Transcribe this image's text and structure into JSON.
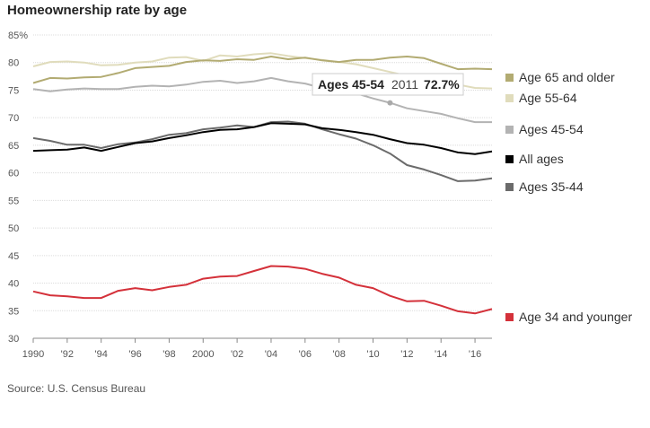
{
  "title": "Homeownership rate by age",
  "source": "Source: U.S. Census Bureau",
  "chart_data": {
    "type": "line",
    "x_ticks": [
      "1990",
      "'92",
      "'94",
      "'96",
      "'98",
      "2000",
      "'02",
      "'04",
      "'06",
      "'08",
      "'10",
      "'12",
      "'14",
      "'16"
    ],
    "x": [
      1990,
      1991,
      1992,
      1993,
      1994,
      1995,
      1996,
      1997,
      1998,
      1999,
      2000,
      2001,
      2002,
      2003,
      2004,
      2005,
      2006,
      2007,
      2008,
      2009,
      2010,
      2011,
      2012,
      2013,
      2014,
      2015,
      2016,
      2017
    ],
    "y_ticks": [
      30,
      35,
      40,
      45,
      50,
      55,
      60,
      65,
      70,
      75,
      80,
      "85%"
    ],
    "ylim": [
      30,
      85
    ],
    "xlim": [
      1990,
      2017
    ],
    "grid": true,
    "legend": "right",
    "series": [
      {
        "name": "Age 65 and older",
        "color": "#b2ab72",
        "values": [
          76.3,
          77.2,
          77.1,
          77.3,
          77.4,
          78.1,
          79.0,
          79.2,
          79.4,
          80.1,
          80.4,
          80.3,
          80.6,
          80.5,
          81.1,
          80.6,
          80.9,
          80.4,
          80.1,
          80.5,
          80.5,
          80.9,
          81.1,
          80.8,
          79.8,
          78.8,
          78.9,
          78.8
        ]
      },
      {
        "name": "Age 55-64",
        "color": "#e0dcbc",
        "values": [
          79.3,
          80.1,
          80.2,
          80.0,
          79.5,
          79.6,
          80.0,
          80.2,
          80.9,
          81.0,
          80.3,
          81.3,
          81.1,
          81.5,
          81.7,
          81.2,
          80.8,
          80.5,
          80.1,
          79.7,
          79.0,
          78.3,
          77.6,
          77.4,
          76.9,
          76.0,
          75.4,
          75.3
        ]
      },
      {
        "name": "Ages 45-54",
        "color": "#b3b3b3",
        "values": [
          75.2,
          74.8,
          75.1,
          75.3,
          75.2,
          75.2,
          75.6,
          75.8,
          75.7,
          76.0,
          76.5,
          76.7,
          76.3,
          76.6,
          77.2,
          76.6,
          76.2,
          75.4,
          75.0,
          74.4,
          73.5,
          72.7,
          71.7,
          71.2,
          70.7,
          69.9,
          69.2,
          69.2
        ]
      },
      {
        "name": "All ages",
        "color": "#000000",
        "values": [
          64.0,
          64.1,
          64.2,
          64.6,
          64.0,
          64.7,
          65.4,
          65.7,
          66.3,
          66.8,
          67.4,
          67.8,
          67.9,
          68.3,
          69.0,
          68.9,
          68.8,
          68.1,
          67.8,
          67.4,
          66.9,
          66.1,
          65.4,
          65.1,
          64.5,
          63.7,
          63.4,
          63.9
        ]
      },
      {
        "name": "Ages 35-44",
        "color": "#6b6b6b",
        "values": [
          66.3,
          65.8,
          65.1,
          65.1,
          64.5,
          65.2,
          65.5,
          66.1,
          66.9,
          67.2,
          67.9,
          68.2,
          68.6,
          68.3,
          69.2,
          69.3,
          68.9,
          67.9,
          67.0,
          66.2,
          65.0,
          63.5,
          61.4,
          60.6,
          59.6,
          58.5,
          58.6,
          59.0
        ]
      },
      {
        "name": "Age 34 and younger",
        "color": "#d4313a",
        "values": [
          38.5,
          37.8,
          37.6,
          37.3,
          37.3,
          38.6,
          39.1,
          38.7,
          39.3,
          39.7,
          40.8,
          41.2,
          41.3,
          42.2,
          43.1,
          43.0,
          42.6,
          41.7,
          41.0,
          39.7,
          39.1,
          37.7,
          36.7,
          36.8,
          35.9,
          34.9,
          34.5,
          35.3
        ]
      }
    ],
    "tooltip": {
      "series": "Ages 45-54",
      "year": "2011",
      "value": "72.7%",
      "x": 2011,
      "y": 72.7
    }
  }
}
